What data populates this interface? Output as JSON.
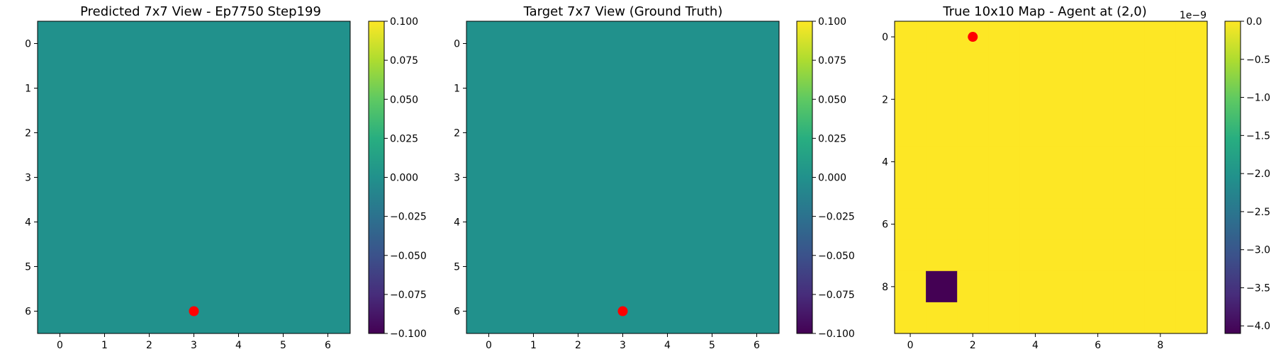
{
  "chart_data": [
    {
      "type": "heatmap",
      "title": "Predicted 7x7 View - Ep7750 Step199",
      "xlabel": "",
      "ylabel": "",
      "grid_size": [
        7,
        7
      ],
      "x_ticks": [
        "0",
        "1",
        "2",
        "3",
        "4",
        "5",
        "6"
      ],
      "y_ticks": [
        "0",
        "1",
        "2",
        "3",
        "4",
        "5",
        "6"
      ],
      "values_fill": 0.0,
      "colorbar": {
        "range": [
          -0.1,
          0.1
        ],
        "ticks": [
          "0.100",
          "0.075",
          "0.050",
          "0.025",
          "0.000",
          "−0.025",
          "−0.050",
          "−0.075",
          "−0.100"
        ],
        "offset_label": ""
      },
      "marker": {
        "x": 3,
        "y": 6,
        "color": "#ff0000"
      },
      "cell_color": "#21918c",
      "colormap": "viridis"
    },
    {
      "type": "heatmap",
      "title": "Target 7x7 View (Ground Truth)",
      "xlabel": "",
      "ylabel": "",
      "grid_size": [
        7,
        7
      ],
      "x_ticks": [
        "0",
        "1",
        "2",
        "3",
        "4",
        "5",
        "6"
      ],
      "y_ticks": [
        "0",
        "1",
        "2",
        "3",
        "4",
        "5",
        "6"
      ],
      "values_fill": 0.0,
      "colorbar": {
        "range": [
          -0.1,
          0.1
        ],
        "ticks": [
          "0.100",
          "0.075",
          "0.050",
          "0.025",
          "0.000",
          "−0.025",
          "−0.050",
          "−0.075",
          "−0.100"
        ],
        "offset_label": ""
      },
      "marker": {
        "x": 3,
        "y": 6,
        "color": "#ff0000"
      },
      "cell_color": "#21918c",
      "colormap": "viridis"
    },
    {
      "type": "heatmap",
      "title": "True 10x10 Map - Agent at (2,0)",
      "xlabel": "",
      "ylabel": "",
      "grid_size": [
        10,
        10
      ],
      "x_ticks": [
        "0",
        "2",
        "4",
        "6",
        "8"
      ],
      "y_ticks": [
        "0",
        "2",
        "4",
        "6",
        "8"
      ],
      "values_fill": 0.0,
      "obstacle": {
        "x": 1,
        "y": 8,
        "value": -4.1e-09,
        "color": "#440154"
      },
      "colorbar": {
        "range": [
          -4.1e-09,
          0.0
        ],
        "ticks": [
          "0.0",
          "−0.5",
          "−1.0",
          "−1.5",
          "−2.0",
          "−2.5",
          "−3.0",
          "−3.5",
          "−4.0"
        ],
        "offset_label": "1e−9"
      },
      "marker": {
        "x": 2,
        "y": 0,
        "color": "#ff0000"
      },
      "cell_color": "#fde725",
      "colormap": "viridis"
    }
  ]
}
